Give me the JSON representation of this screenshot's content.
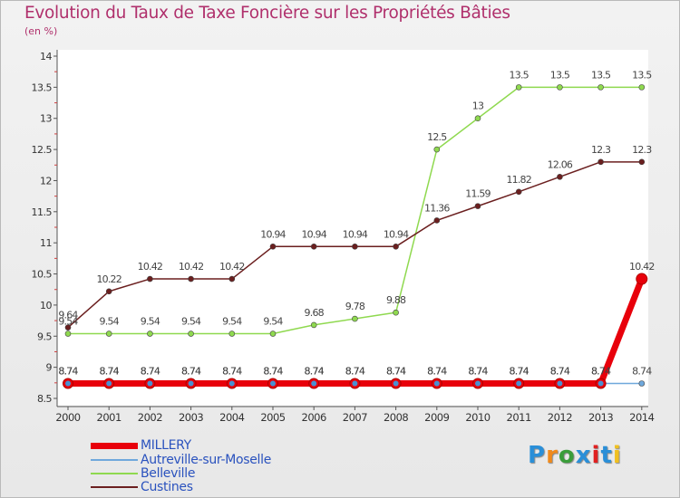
{
  "header": {
    "title": "Evolution du Taux de Taxe Foncière sur les Propriétés Bâties",
    "unit": "(en %)"
  },
  "logo": {
    "text": "Proxiti"
  },
  "chart_data": {
    "type": "line",
    "title": "Evolution du Taux de Taxe Foncière sur les Propriétés Bâties",
    "ylabel": "(en %)",
    "xlabel": "",
    "ylim": [
      8.5,
      14
    ],
    "yticks": [
      "8.5",
      "9",
      "9.5",
      "10",
      "10.5",
      "11",
      "11.5",
      "12",
      "12.5",
      "13",
      "13.5",
      "14"
    ],
    "categories": [
      "2000",
      "2001",
      "2002",
      "2003",
      "2004",
      "2005",
      "2006",
      "2007",
      "2008",
      "2009",
      "2010",
      "2011",
      "2012",
      "2013",
      "2014"
    ],
    "series": [
      {
        "name": "MILLERY",
        "color": "#e8000b",
        "values": [
          8.74,
          8.74,
          8.74,
          8.74,
          8.74,
          8.74,
          8.74,
          8.74,
          8.74,
          8.74,
          8.74,
          8.74,
          8.74,
          8.74,
          10.42
        ],
        "labels": [
          "8.74",
          "8.74",
          "8.74",
          "8.74",
          "8.74",
          "8.74",
          "8.74",
          "8.74",
          "8.74",
          "8.74",
          "8.74",
          "8.74",
          "8.74",
          "8.74",
          "10.42"
        ]
      },
      {
        "name": "Autreville-sur-Moselle",
        "color": "#6fa8dc",
        "values": [
          8.74,
          8.74,
          8.74,
          8.74,
          8.74,
          8.74,
          8.74,
          8.74,
          8.74,
          8.74,
          8.74,
          8.74,
          8.74,
          8.74,
          8.74
        ],
        "labels": [
          "8.74",
          "8.74",
          "8.74",
          "8.74",
          "8.74",
          "8.74",
          "8.74",
          "8.74",
          "8.74",
          "8.74",
          "8.74",
          "8.74",
          "8.74",
          "8.74",
          "8.74"
        ]
      },
      {
        "name": "Belleville",
        "color": "#8fd94f",
        "values": [
          9.54,
          9.54,
          9.54,
          9.54,
          9.54,
          9.54,
          9.68,
          9.78,
          9.88,
          12.5,
          13,
          13.5,
          13.5,
          13.5,
          13.5
        ],
        "labels": [
          "9.54",
          "9.54",
          "9.54",
          "9.54",
          "9.54",
          "9.54",
          "9.68",
          "9.78",
          "9.88",
          "12.5",
          "13",
          "13.5",
          "13.5",
          "13.5",
          "13.5"
        ]
      },
      {
        "name": "Custines",
        "color": "#6b1f1f",
        "values": [
          9.64,
          10.22,
          10.42,
          10.42,
          10.42,
          10.94,
          10.94,
          10.94,
          10.94,
          11.36,
          11.59,
          11.82,
          12.06,
          12.3,
          12.3
        ],
        "labels": [
          "9.64",
          "10.22",
          "10.42",
          "10.42",
          "10.42",
          "10.94",
          "10.94",
          "10.94",
          "10.94",
          "11.36",
          "11.59",
          "11.82",
          "12.06",
          "12.3",
          "12.3"
        ]
      }
    ]
  }
}
